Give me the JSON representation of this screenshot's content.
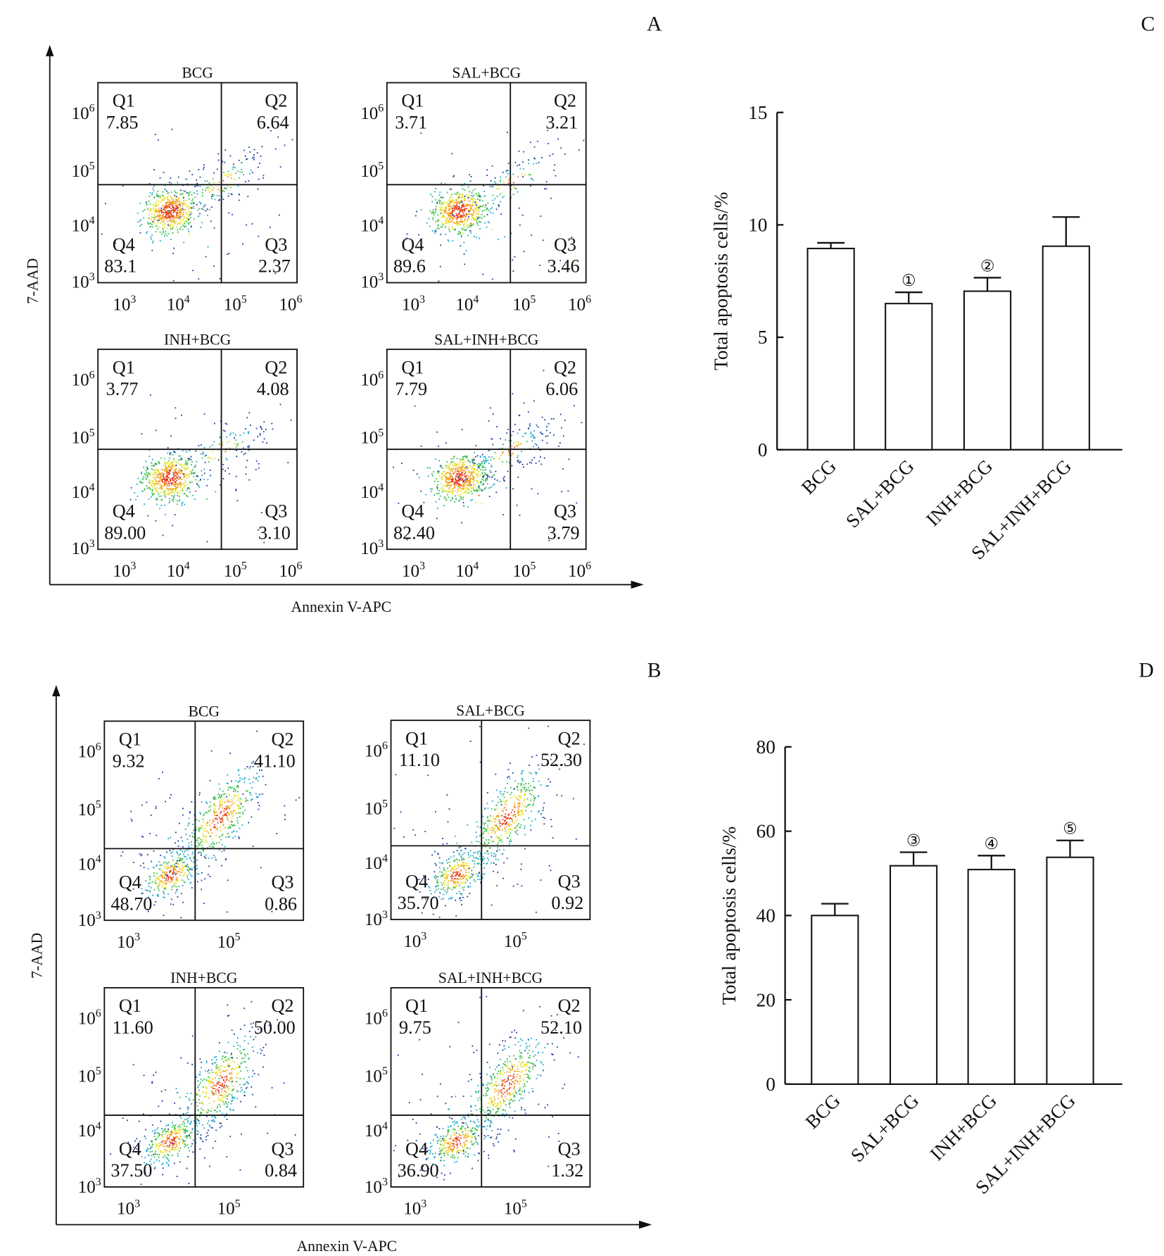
{
  "panel_letters": {
    "A": "A",
    "B": "B",
    "C": "C",
    "D": "D"
  },
  "flow": {
    "A": {
      "xlabel": "Annexin V-APC",
      "ylabel": "7-AAD",
      "tick_base": "10",
      "y_tick_exps": [
        "6",
        "5",
        "4",
        "3"
      ],
      "x_tick_exps": [
        "3",
        "4",
        "5",
        "6"
      ],
      "plots": [
        {
          "title": "BCG",
          "Q1": "7.85",
          "Q2": "6.64",
          "Q3": "2.37",
          "Q4": "83.1"
        },
        {
          "title": "SAL+BCG",
          "Q1": "3.71",
          "Q2": "3.21",
          "Q3": "3.46",
          "Q4": "89.6"
        },
        {
          "title": "INH+BCG",
          "Q1": "3.77",
          "Q2": "4.08",
          "Q3": "3.10",
          "Q4": "89.00"
        },
        {
          "title": "SAL+INH+BCG",
          "Q1": "7.79",
          "Q2": "6.06",
          "Q3": "3.79",
          "Q4": "82.40"
        }
      ]
    },
    "B": {
      "xlabel": "Annexin V-APC",
      "ylabel": "7-AAD",
      "tick_base": "10",
      "y_tick_exps": [
        "6",
        "5",
        "4",
        "3"
      ],
      "x_tick_exps": [
        "3",
        "5"
      ],
      "plots": [
        {
          "title": "BCG",
          "Q1": "9.32",
          "Q2": "41.10",
          "Q3": "0.86",
          "Q4": "48.70"
        },
        {
          "title": "SAL+BCG",
          "Q1": "11.10",
          "Q2": "52.30",
          "Q3": "0.92",
          "Q4": "35.70"
        },
        {
          "title": "INH+BCG",
          "Q1": "11.60",
          "Q2": "50.00",
          "Q3": "0.84",
          "Q4": "37.50"
        },
        {
          "title": "SAL+INH+BCG",
          "Q1": "9.75",
          "Q2": "52.10",
          "Q3": "1.32",
          "Q4": "36.90"
        }
      ]
    }
  },
  "chart_data": [
    {
      "type": "bar",
      "panel": "C",
      "ylabel": "Total apoptosis cells/%",
      "xlabel": "",
      "ylim": [
        0,
        15
      ],
      "yticks": [
        "0",
        "5",
        "10",
        "15"
      ],
      "categories": [
        "BCG",
        "SAL+BCG",
        "INH+BCG",
        "SAL+INH+BCG"
      ],
      "values": [
        8.95,
        6.5,
        7.05,
        9.05
      ],
      "error_upper": [
        0.25,
        0.5,
        0.6,
        1.3
      ],
      "annotations": [
        "",
        "①",
        "②",
        ""
      ]
    },
    {
      "type": "bar",
      "panel": "D",
      "ylabel": "Total apoptosis cells/%",
      "xlabel": "",
      "ylim": [
        0,
        80
      ],
      "yticks": [
        "0",
        "20",
        "40",
        "60",
        "80"
      ],
      "categories": [
        "BCG",
        "SAL+BCG",
        "INH+BCG",
        "SAL+INH+BCG"
      ],
      "values": [
        40.0,
        51.8,
        50.9,
        53.8
      ],
      "error_upper": [
        2.8,
        3.2,
        3.3,
        4.0
      ],
      "annotations": [
        "",
        "③",
        "④",
        "⑤"
      ]
    }
  ]
}
